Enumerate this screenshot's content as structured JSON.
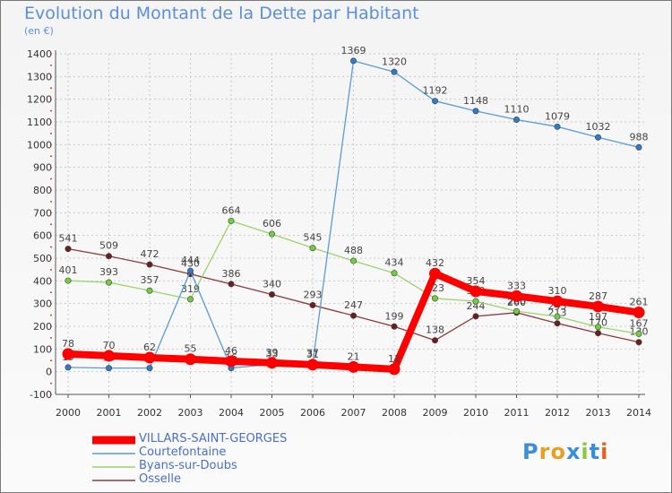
{
  "title": "Evolution du Montant de la Dette par Habitant",
  "unit": "(en €)",
  "logo": "Proxiti",
  "colors": {
    "title": "#5c8fd6",
    "grid": "#c8c8c8"
  },
  "chart_data": {
    "type": "line",
    "title": "Evolution du Montant de la Dette par Habitant",
    "ylabel": "(en €)",
    "xlabel": "",
    "ylim": [
      -100,
      1400
    ],
    "yticks": [
      -100,
      0,
      100,
      200,
      300,
      400,
      500,
      600,
      700,
      800,
      900,
      1000,
      1100,
      1200,
      1300,
      1400
    ],
    "categories": [
      "2000",
      "2001",
      "2002",
      "2003",
      "2004",
      "2005",
      "2006",
      "2007",
      "2008",
      "2009",
      "2010",
      "2011",
      "2012",
      "2013",
      "2014"
    ],
    "legend_position": "bottom-left",
    "series": [
      {
        "name": "VILLARS-SAINT-GEORGES",
        "color": "#ff0000",
        "marker": "#ff0000",
        "width": 8,
        "values": [
          78,
          70,
          62,
          55,
          46,
          39,
          31,
          21,
          11,
          432,
          354,
          333,
          310,
          287,
          261
        ],
        "labels": [
          "78",
          "70",
          "62",
          "55",
          "46",
          "39",
          "31",
          "21",
          "11",
          "432",
          "354",
          "333",
          "310",
          "287",
          "261"
        ]
      },
      {
        "name": "Courtefontaine",
        "color": "#5b9bd5",
        "marker": "#2e7bc9",
        "width": 1.3,
        "values": [
          19,
          16,
          16,
          444,
          16,
          33,
          37,
          1369,
          1320,
          1192,
          1148,
          1110,
          1079,
          1032,
          988
        ],
        "labels": [
          "19",
          "16",
          "",
          "444",
          "16",
          "33",
          "37",
          "1369",
          "1320",
          "1192",
          "1148",
          "1110",
          "1079",
          "1032",
          "988"
        ]
      },
      {
        "name": "Byans-sur-Doubs",
        "color": "#9bd46a",
        "marker": "#6fcf3f",
        "width": 1.3,
        "values": [
          401,
          393,
          357,
          319,
          664,
          606,
          545,
          488,
          434,
          323,
          310,
          266,
          243,
          197,
          167
        ],
        "labels": [
          "401",
          "393",
          "357",
          "319",
          "664",
          "606",
          "545",
          "488",
          "434",
          "323",
          "310",
          "266",
          "243",
          "197",
          "167"
        ]
      },
      {
        "name": "Osselle",
        "color": "#8b3a3a",
        "marker": "#6b1e1e",
        "width": 1.3,
        "values": [
          541,
          509,
          472,
          430,
          386,
          340,
          293,
          247,
          199,
          138,
          244,
          260,
          213,
          170,
          130
        ],
        "labels": [
          "541",
          "509",
          "472",
          "430",
          "386",
          "340",
          "293",
          "247",
          "199",
          "138",
          "244",
          "260",
          "213",
          "170",
          "130"
        ]
      }
    ]
  }
}
